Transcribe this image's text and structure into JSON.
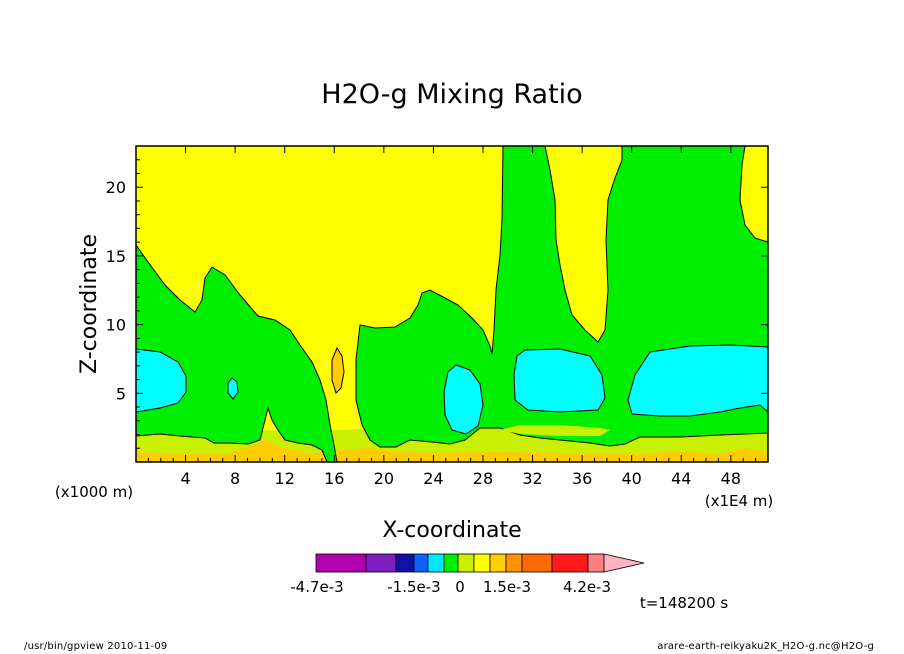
{
  "chart_data": {
    "type": "heatmap",
    "title": "H2O-g Mixing Ratio",
    "xlabel": "X-coordinate",
    "ylabel": "Z-coordinate",
    "x_unit_left": "(x1000 m)",
    "x_unit_right": "(x1E4 m)",
    "xlim": [
      0,
      51
    ],
    "ylim": [
      0,
      23
    ],
    "x_ticks": [
      "4",
      "8",
      "12",
      "16",
      "20",
      "24",
      "28",
      "32",
      "36",
      "40",
      "44",
      "48"
    ],
    "y_ticks": [
      "5",
      "10",
      "15",
      "20"
    ],
    "time_label": "t=148200 s",
    "colorbar": {
      "labels": [
        "-4.7e-3",
        "-1.5e-3",
        "0",
        "1.5e-3",
        "4.2e-3"
      ],
      "colors": [
        "#b000b0",
        "#7f1fbf",
        "#1010a8",
        "#1060ff",
        "#00e8ff",
        "#00ee00",
        "#c8f000",
        "#ffff00",
        "#ffd000",
        "#ff9400",
        "#ff6a00",
        "#ff1a1a",
        "#ff7f7f",
        "#ffb4c0"
      ]
    },
    "fields": {
      "yellow_band": "#ffff00",
      "green": "#00ee00",
      "yellow_green": "#c8f000",
      "cyan": "#00ffff",
      "orange": "#ffcc00"
    }
  },
  "footer": {
    "left": "/usr/bin/gpview   2010-11-09",
    "right": "arare-earth-reikyaku2K_H2O-g.nc@H2O-g"
  }
}
